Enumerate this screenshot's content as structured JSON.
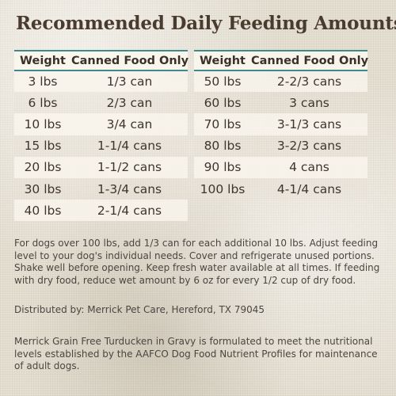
{
  "title": "Recommended Daily Feeding Amounts:",
  "table_left": {
    "headers": [
      "Weight",
      "Canned Food Only"
    ],
    "rows": [
      [
        "3 lbs",
        "1/3 can"
      ],
      [
        "6 lbs",
        "2/3 can"
      ],
      [
        "10 lbs",
        "3/4 can"
      ],
      [
        "15 lbs",
        "1-1/4 cans"
      ],
      [
        "20 lbs",
        "1-1/2 cans"
      ],
      [
        "30 lbs",
        "1-3/4 cans"
      ],
      [
        "40 lbs",
        "2-1/4 cans"
      ]
    ]
  },
  "table_right": {
    "headers": [
      "Weight",
      "Canned Food Only"
    ],
    "rows": [
      [
        "50 lbs",
        "2-2/3 cans"
      ],
      [
        "60 lbs",
        "3 cans"
      ],
      [
        "70 lbs",
        "3-1/3 cans"
      ],
      [
        "80 lbs",
        "3-2/3 cans"
      ],
      [
        "90 lbs",
        "4 cans"
      ],
      [
        "100 lbs",
        "4-1/4 cans"
      ]
    ]
  },
  "feeding_note": "For dogs over 100 lbs, add 1/3 can for each additional 10 lbs. Adjust feeding level to your dog's individual needs. Cover and refrigerate unused portions. Shake well before opening. Keep fresh water available at all times. If feeding with dry food, reduce wet amount by 6 oz for every 1/2 cup of dry food.",
  "distributor": "Distributed by: Merrick Pet Care, Hereford, TX 79045",
  "aafco_statement": "Merrick Grain Free Turducken in Gravy is formulated to meet the nutritional levels established by the AAFCO Dog Food Nutrient Profiles for maintenance of adult dogs.",
  "colors": {
    "rule_teal": "#3e8a8a",
    "title_brown": "#4a3b2f",
    "background_linen": "#e6e0d3"
  }
}
